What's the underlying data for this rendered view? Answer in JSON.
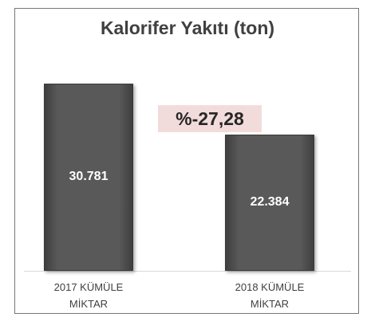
{
  "chart_data": {
    "type": "bar",
    "title": "Kalorifer Yakıtı (ton)",
    "categories": [
      "2017 KÜMÜLE MİKTAR",
      "2018 KÜMÜLE MİKTAR"
    ],
    "values": [
      30781,
      22384
    ],
    "value_labels": [
      "30.781",
      "22.384"
    ],
    "color": "#595959",
    "annotation": "%-27,28"
  }
}
